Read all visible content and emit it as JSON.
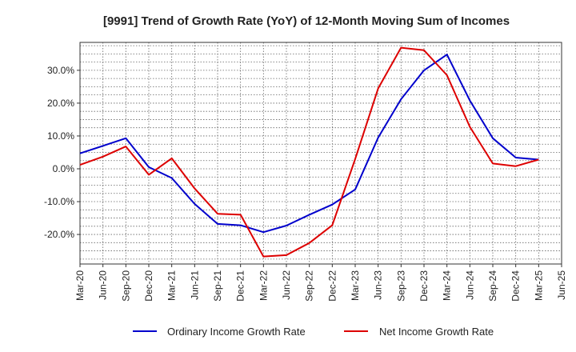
{
  "chart_data": {
    "type": "line",
    "title": "[9991]  Trend of Growth Rate (YoY) of 12-Month Moving Sum of Incomes",
    "xlabel": "",
    "ylabel": "",
    "x_ticks": [
      "Mar-20",
      "Jun-20",
      "Sep-20",
      "Dec-20",
      "Mar-21",
      "Jun-21",
      "Sep-21",
      "Dec-21",
      "Mar-22",
      "Jun-22",
      "Sep-22",
      "Dec-22",
      "Mar-23",
      "Jun-23",
      "Sep-23",
      "Dec-23",
      "Mar-24",
      "Jun-24",
      "Sep-24",
      "Dec-24",
      "Mar-25",
      "Jun-25"
    ],
    "y_ticks": [
      "-20.0%",
      "-10.0%",
      "0.0%",
      "10.0%",
      "20.0%",
      "30.0%"
    ],
    "y_tick_values": [
      -20,
      -10,
      0,
      10,
      20,
      30
    ],
    "ylim": [
      -29,
      38.5
    ],
    "grid": true,
    "legend_position": "bottom",
    "series": [
      {
        "name": "Ordinary Income Growth Rate",
        "color": "#0000cc",
        "x": [
          "Mar-20",
          "Jun-20",
          "Sep-20",
          "Dec-20",
          "Mar-21",
          "Jun-21",
          "Sep-21",
          "Dec-21",
          "Mar-22",
          "Jun-22",
          "Sep-22",
          "Dec-22",
          "Mar-23",
          "Jun-23",
          "Sep-23",
          "Dec-23",
          "Mar-24",
          "Jun-24",
          "Sep-24",
          "Dec-24",
          "Mar-25"
        ],
        "values": [
          4.7,
          7.0,
          9.3,
          0.5,
          -2.8,
          -10.7,
          -16.8,
          -17.2,
          -19.3,
          -17.3,
          -14.0,
          -10.9,
          -6.3,
          9.5,
          21.2,
          30.0,
          34.8,
          20.8,
          9.3,
          3.4,
          2.8
        ]
      },
      {
        "name": "Net Income Growth Rate",
        "color": "#dd0000",
        "x": [
          "Mar-20",
          "Jun-20",
          "Sep-20",
          "Dec-20",
          "Mar-21",
          "Jun-21",
          "Sep-21",
          "Dec-21",
          "Mar-22",
          "Jun-22",
          "Sep-22",
          "Dec-22",
          "Mar-23",
          "Jun-23",
          "Sep-23",
          "Dec-23",
          "Mar-24",
          "Jun-24",
          "Sep-24",
          "Dec-24",
          "Mar-25"
        ],
        "values": [
          1.2,
          3.7,
          6.8,
          -1.8,
          3.2,
          -6.0,
          -13.7,
          -14.0,
          -26.7,
          -26.3,
          -22.6,
          -17.2,
          3.0,
          24.5,
          36.9,
          36.1,
          28.5,
          12.8,
          1.6,
          0.8,
          2.8
        ]
      }
    ]
  }
}
